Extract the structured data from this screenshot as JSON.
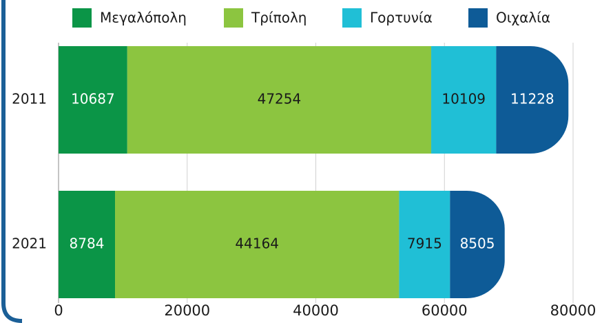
{
  "chart_data": {
    "type": "stacked_barh",
    "categories": [
      "2011",
      "2021"
    ],
    "series": [
      {
        "name": "Μεγαλόπολη",
        "color": "#0b9547",
        "label_color": "#ffffff",
        "values": [
          10687,
          8784
        ]
      },
      {
        "name": "Τρίπολη",
        "color": "#8cc540",
        "label_color": "#1a1a1a",
        "values": [
          47254,
          44164
        ]
      },
      {
        "name": "Γορτυνία",
        "color": "#20bfd6",
        "label_color": "#1a1a1a",
        "values": [
          10109,
          7915
        ]
      },
      {
        "name": "Οιχαλία",
        "color": "#0e5b97",
        "label_color": "#ffffff",
        "values": [
          11228,
          8505
        ]
      }
    ],
    "xlim": [
      0,
      80000
    ],
    "xticks": [
      0,
      20000,
      40000,
      60000,
      80000
    ],
    "grid": true,
    "legend": "top"
  }
}
